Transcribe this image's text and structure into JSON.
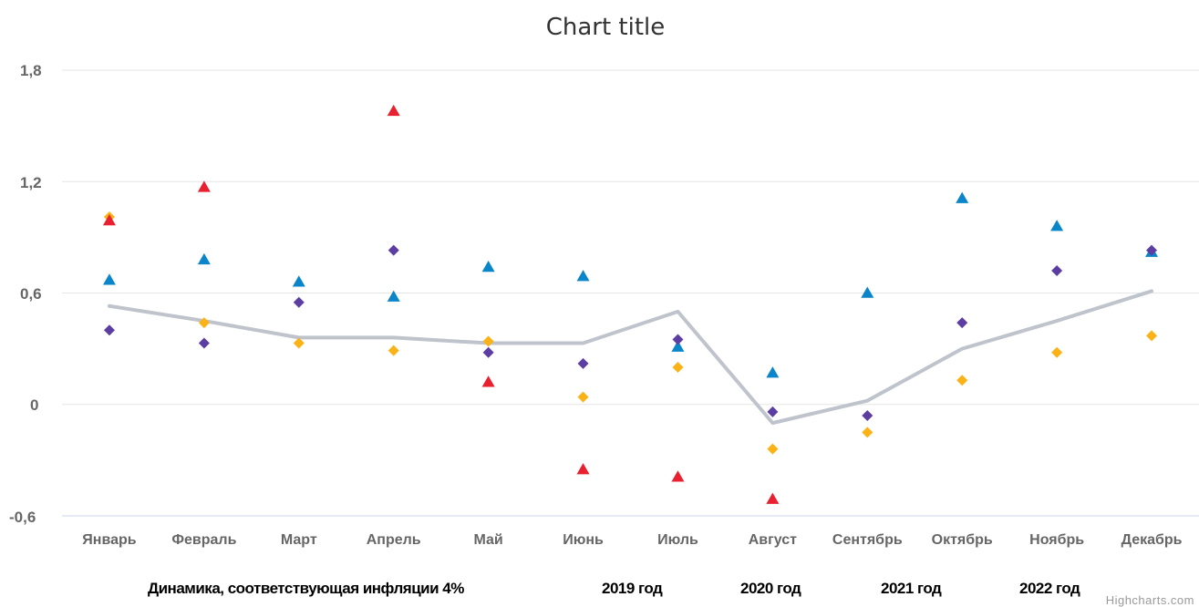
{
  "chart_data": {
    "type": "scatter",
    "title": "Chart title",
    "categories": [
      "Январь",
      "Февраль",
      "Март",
      "Апрель",
      "Май",
      "Июнь",
      "Июль",
      "Август",
      "Сентябрь",
      "Октябрь",
      "Ноябрь",
      "Декабрь"
    ],
    "y_ticks": [
      "1,8",
      "1,2",
      "0,6",
      "0",
      "-0,6"
    ],
    "ylim": [
      -0.6,
      1.8
    ],
    "grid": true,
    "legend_position": "bottom",
    "series": [
      {
        "name": "Динамика, соответствующая инфляции 4%",
        "type": "line",
        "color": "#bfc3cc",
        "values": [
          0.53,
          0.45,
          0.36,
          0.36,
          0.33,
          0.33,
          0.5,
          -0.1,
          0.02,
          0.3,
          0.45,
          0.61
        ]
      },
      {
        "name": "2019 год",
        "type": "scatter",
        "marker": "diamond",
        "color": "#fbb216",
        "values": [
          1.01,
          0.44,
          0.33,
          0.29,
          0.34,
          0.04,
          0.2,
          -0.24,
          -0.15,
          0.13,
          0.28,
          0.37
        ]
      },
      {
        "name": "2020 год",
        "type": "scatter",
        "marker": "triangle",
        "color": "#e8202f",
        "values": [
          0.99,
          1.17,
          null,
          1.58,
          0.12,
          -0.35,
          -0.39,
          -0.51,
          null,
          null,
          null,
          null
        ]
      },
      {
        "name": "2021 год",
        "type": "scatter",
        "marker": "triangle",
        "color": "#0a85c9",
        "values": [
          0.67,
          0.78,
          0.66,
          0.58,
          0.74,
          0.69,
          0.31,
          0.17,
          0.6,
          1.11,
          0.96,
          0.82
        ]
      },
      {
        "name": "2022 год",
        "type": "scatter",
        "marker": "diamond",
        "color": "#5c3ea3",
        "values": [
          0.4,
          0.33,
          0.55,
          0.83,
          0.28,
          0.22,
          0.35,
          -0.04,
          -0.06,
          0.44,
          0.72,
          0.83
        ]
      }
    ]
  },
  "legend": {
    "items": [
      "Динамика, соответствующая инфляции 4%",
      "2019 год",
      "2020 год",
      "2021 год",
      "2022 год"
    ]
  },
  "credits": "Highcharts.com"
}
